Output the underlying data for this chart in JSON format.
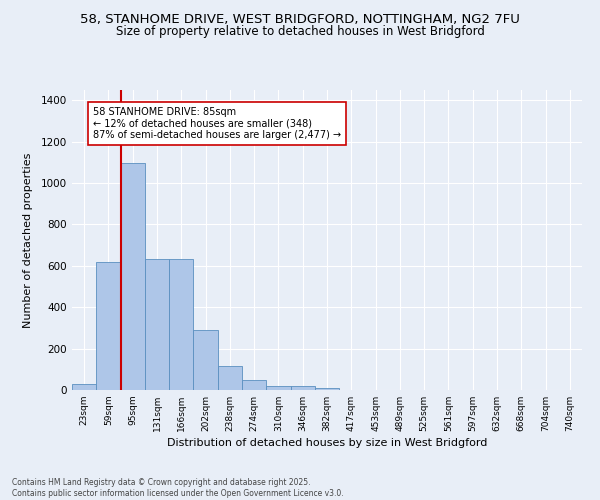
{
  "title_line1": "58, STANHOME DRIVE, WEST BRIDGFORD, NOTTINGHAM, NG2 7FU",
  "title_line2": "Size of property relative to detached houses in West Bridgford",
  "xlabel": "Distribution of detached houses by size in West Bridgford",
  "ylabel": "Number of detached properties",
  "bin_labels": [
    "23sqm",
    "59sqm",
    "95sqm",
    "131sqm",
    "166sqm",
    "202sqm",
    "238sqm",
    "274sqm",
    "310sqm",
    "346sqm",
    "382sqm",
    "417sqm",
    "453sqm",
    "489sqm",
    "525sqm",
    "561sqm",
    "597sqm",
    "632sqm",
    "668sqm",
    "704sqm",
    "740sqm"
  ],
  "bar_heights": [
    30,
    620,
    1095,
    635,
    635,
    290,
    115,
    48,
    20,
    20,
    10,
    0,
    0,
    0,
    0,
    0,
    0,
    0,
    0,
    0,
    0
  ],
  "bar_color": "#aec6e8",
  "bar_edge_color": "#5a8fc0",
  "vline_x_idx": 1.5,
  "vline_color": "#cc0000",
  "annotation_text": "58 STANHOME DRIVE: 85sqm\n← 12% of detached houses are smaller (348)\n87% of semi-detached houses are larger (2,477) →",
  "annotation_box_color": "#ffffff",
  "annotation_box_edge": "#cc0000",
  "ylim": [
    0,
    1450
  ],
  "yticks": [
    0,
    200,
    400,
    600,
    800,
    1000,
    1200,
    1400
  ],
  "background_color": "#e8eef7",
  "grid_color": "#ffffff",
  "footer_line1": "Contains HM Land Registry data © Crown copyright and database right 2025.",
  "footer_line2": "Contains public sector information licensed under the Open Government Licence v3.0."
}
